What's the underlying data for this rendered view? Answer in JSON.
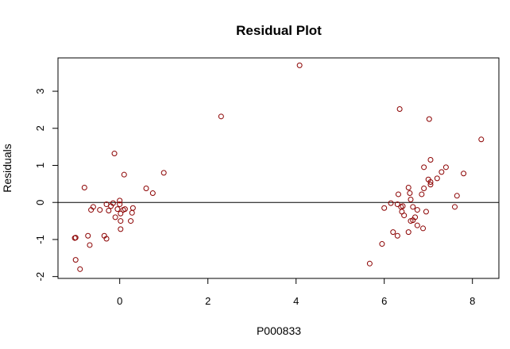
{
  "chart_data": {
    "type": "scatter",
    "title": "Residual Plot",
    "xlabel": "P000833",
    "ylabel": "Residuals",
    "xlim": [
      -1.4,
      8.6
    ],
    "ylim": [
      -2.05,
      3.9
    ],
    "xticks": [
      0,
      2,
      4,
      6,
      8
    ],
    "yticks": [
      -2,
      -1,
      0,
      1,
      2,
      3
    ],
    "reference_line_y": 0,
    "grid": false,
    "legend": "none",
    "point_color": "#8b0000",
    "points": [
      [
        -1.0,
        -0.95
      ],
      [
        -1.02,
        -0.96
      ],
      [
        -1.0,
        -1.55
      ],
      [
        -0.9,
        -1.8
      ],
      [
        -0.8,
        0.4
      ],
      [
        -0.72,
        -0.9
      ],
      [
        -0.68,
        -1.15
      ],
      [
        -0.65,
        -0.2
      ],
      [
        -0.6,
        -0.12
      ],
      [
        -0.45,
        -0.2
      ],
      [
        -0.35,
        -0.9
      ],
      [
        -0.3,
        -0.98
      ],
      [
        -0.3,
        -0.05
      ],
      [
        -0.25,
        -0.22
      ],
      [
        -0.2,
        -0.1
      ],
      [
        -0.15,
        -0.02
      ],
      [
        -0.12,
        1.32
      ],
      [
        -0.1,
        -0.4
      ],
      [
        -0.05,
        -0.18
      ],
      [
        0.0,
        -0.05
      ],
      [
        0.0,
        0.05
      ],
      [
        0.02,
        -0.3
      ],
      [
        0.02,
        -0.5
      ],
      [
        0.02,
        -0.72
      ],
      [
        0.08,
        -0.2
      ],
      [
        0.1,
        0.75
      ],
      [
        0.12,
        -0.18
      ],
      [
        0.25,
        -0.5
      ],
      [
        0.28,
        -0.28
      ],
      [
        0.3,
        -0.15
      ],
      [
        0.6,
        0.38
      ],
      [
        0.75,
        0.25
      ],
      [
        1.0,
        0.8
      ],
      [
        2.3,
        2.32
      ],
      [
        4.08,
        3.7
      ],
      [
        5.67,
        -1.65
      ],
      [
        5.95,
        -1.12
      ],
      [
        6.0,
        -0.15
      ],
      [
        6.15,
        -0.02
      ],
      [
        6.2,
        -0.8
      ],
      [
        6.3,
        -0.9
      ],
      [
        6.3,
        -0.05
      ],
      [
        6.32,
        0.22
      ],
      [
        6.35,
        2.52
      ],
      [
        6.38,
        -0.12
      ],
      [
        6.4,
        -0.25
      ],
      [
        6.42,
        -0.1
      ],
      [
        6.45,
        -0.35
      ],
      [
        6.55,
        0.4
      ],
      [
        6.55,
        -0.8
      ],
      [
        6.58,
        0.25
      ],
      [
        6.6,
        0.08
      ],
      [
        6.6,
        -0.5
      ],
      [
        6.65,
        -0.48
      ],
      [
        6.65,
        -0.12
      ],
      [
        6.7,
        -0.4
      ],
      [
        6.75,
        -0.62
      ],
      [
        6.75,
        -0.2
      ],
      [
        6.85,
        0.22
      ],
      [
        6.88,
        -0.7
      ],
      [
        6.9,
        0.38
      ],
      [
        6.9,
        0.95
      ],
      [
        6.95,
        -0.25
      ],
      [
        7.0,
        0.62
      ],
      [
        7.02,
        2.25
      ],
      [
        7.05,
        0.48
      ],
      [
        7.05,
        0.55
      ],
      [
        7.05,
        1.15
      ],
      [
        7.2,
        0.65
      ],
      [
        7.3,
        0.82
      ],
      [
        7.4,
        0.95
      ],
      [
        7.6,
        -0.12
      ],
      [
        7.65,
        0.18
      ],
      [
        7.8,
        0.78
      ],
      [
        8.2,
        1.7
      ]
    ]
  }
}
